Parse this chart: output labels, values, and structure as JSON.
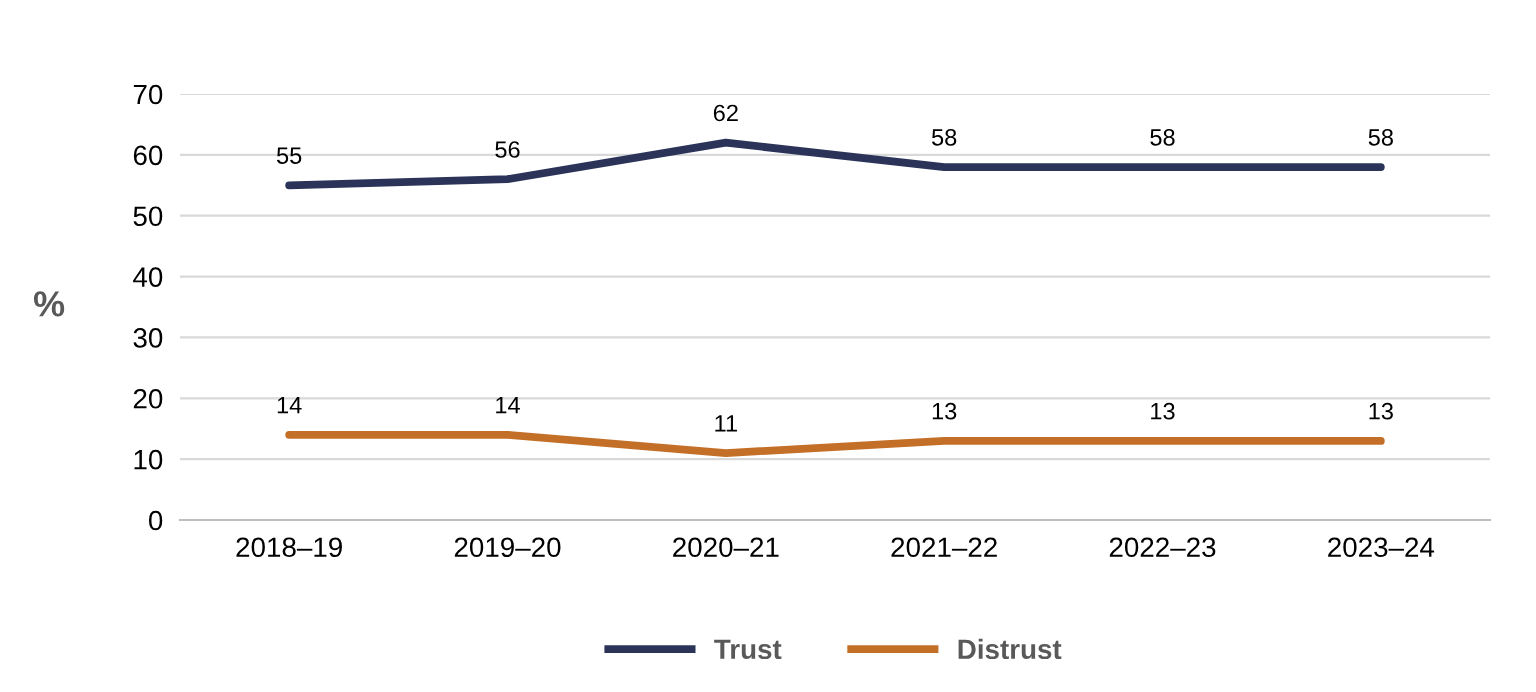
{
  "chart_data": {
    "type": "line",
    "ylabel": "%",
    "categories": [
      "2018–19",
      "2019–20",
      "2020–21",
      "2021–22",
      "2022–23",
      "2023–24"
    ],
    "series": [
      {
        "name": "Trust",
        "color": "#2b3458",
        "values": [
          55,
          56,
          62,
          58,
          58,
          58
        ]
      },
      {
        "name": "Distrust",
        "color": "#c46f27",
        "values": [
          14,
          14,
          11,
          13,
          13,
          13
        ]
      }
    ],
    "ylim": [
      0,
      70
    ],
    "yticks": [
      0,
      10,
      20,
      30,
      40,
      50,
      60,
      70
    ],
    "grid": "y",
    "legend": "bottom",
    "data_labels": true,
    "marker": "none",
    "line_style": "solid"
  }
}
